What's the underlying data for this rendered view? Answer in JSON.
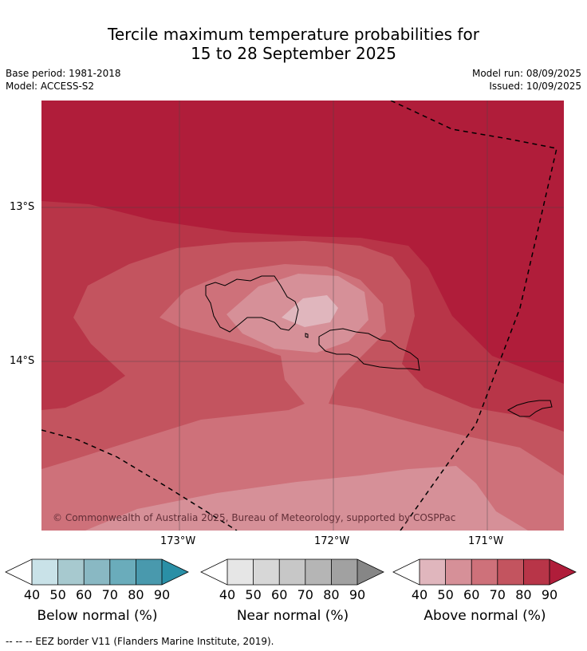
{
  "title": {
    "line1": "Tercile maximum temperature probabilities for",
    "line2": "15 to 28 September 2025"
  },
  "info": {
    "base_period": "Base period: 1981-2018",
    "model": "Model: ACCESS-S2",
    "model_run": "Model run: 08/09/2025",
    "issued": "Issued: 10/09/2025"
  },
  "map": {
    "lat_labels": [
      "13°S",
      "14°S"
    ],
    "lon_labels": [
      "173°W",
      "172°W",
      "171°W"
    ],
    "copyright": "© Commonwealth of Australia 2025, Bureau of Meteorology, supported by COSPPac"
  },
  "colorbars": [
    {
      "title": "Below normal (%)",
      "ticks": [
        "40",
        "50",
        "60",
        "70",
        "80",
        "90"
      ],
      "colors": [
        "#ffffff",
        "#c9e2e8",
        "#a7c9cf",
        "#89b8c3",
        "#6aacbb",
        "#4999ad",
        "#2a8fa6"
      ]
    },
    {
      "title": "Near normal (%)",
      "ticks": [
        "40",
        "50",
        "60",
        "70",
        "80",
        "90"
      ],
      "colors": [
        "#ffffff",
        "#e6e6e6",
        "#d7d7d7",
        "#c7c7c7",
        "#b5b5b5",
        "#a1a1a1",
        "#868686"
      ]
    },
    {
      "title": "Above normal (%)",
      "ticks": [
        "40",
        "50",
        "60",
        "70",
        "80",
        "90"
      ],
      "colors": [
        "#ffffff",
        "#e0b6bd",
        "#d69098",
        "#ce717a",
        "#c3545f",
        "#b83548",
        "#b01d3a"
      ]
    }
  ],
  "legend_footnote": "--  --  -- EEZ border V11 (Flanders Marine Institute, 2019)."
}
